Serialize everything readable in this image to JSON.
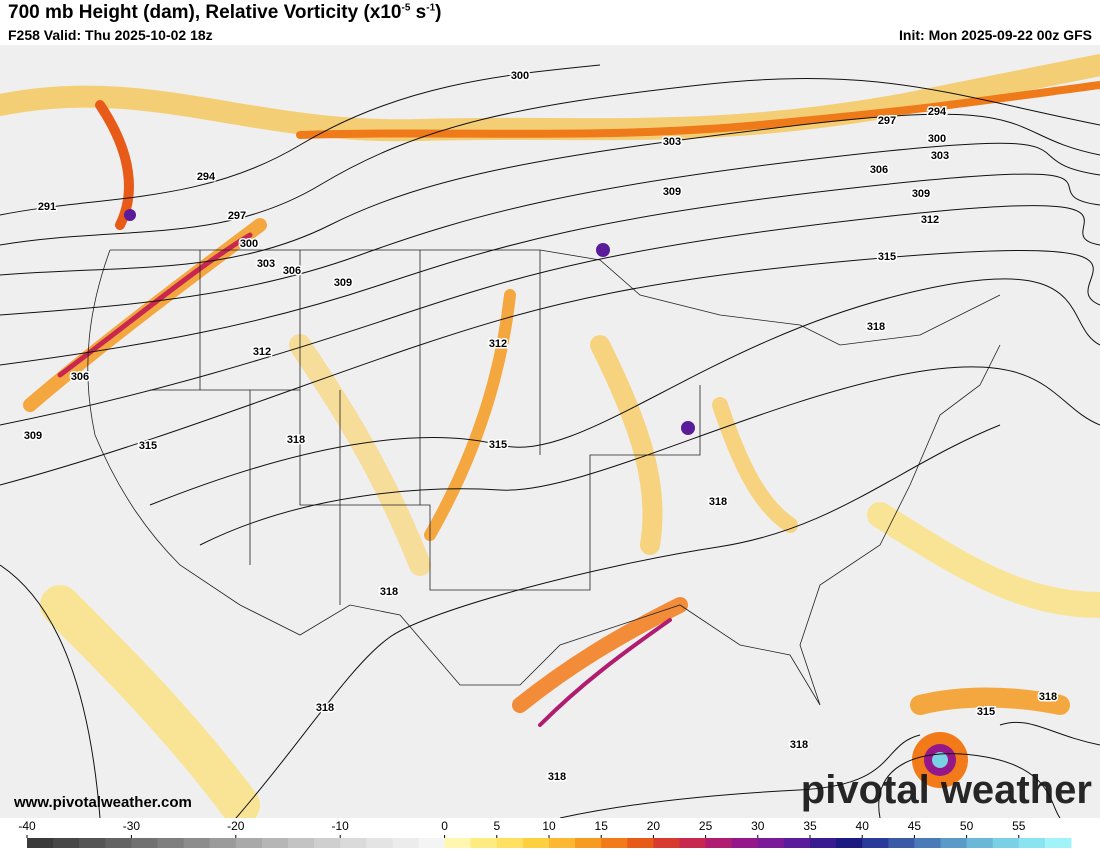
{
  "header": {
    "title": {
      "main": "700 mb Height (dam), Relative Vorticity (x10",
      "exp1": "-5",
      "mid": " s",
      "exp2": "-1",
      "end": ")"
    },
    "valid": "F258 Valid: Thu 2025-10-02 18z",
    "init": "Init: Mon 2025-09-22 00z GFS"
  },
  "map": {
    "contour_labels": [
      300,
      294,
      297,
      300,
      303,
      303,
      306,
      309,
      309,
      312,
      315,
      294,
      291,
      297,
      300,
      303,
      306,
      309,
      312,
      312,
      318,
      306,
      309,
      315,
      318,
      315,
      318,
      318,
      318,
      318,
      315,
      318,
      318
    ],
    "website": "www.pivotalweather.com",
    "watermark": "pivotal weather"
  },
  "colorbar": {
    "range": [
      -40,
      60
    ],
    "ticks": [
      -40,
      -30,
      -20,
      -10,
      0,
      5,
      10,
      15,
      20,
      25,
      30,
      35,
      40,
      45,
      50,
      55
    ],
    "colors": [
      "#3a3a3a",
      "#474747",
      "#555555",
      "#636363",
      "#717171",
      "#7f7f7f",
      "#8d8d8d",
      "#9b9b9b",
      "#a9a9a9",
      "#b6b6b6",
      "#c3c3c3",
      "#cfcfcf",
      "#dadada",
      "#e4e4e4",
      "#ececec",
      "#f4f4f4",
      "#fff7b0",
      "#ffec80",
      "#ffe060",
      "#fdd040",
      "#fbb830",
      "#f79a20",
      "#f27a18",
      "#e85a18",
      "#d83a30",
      "#c82850",
      "#b01c70",
      "#94188a",
      "#7a1a98",
      "#5a1c9a",
      "#3a1a90",
      "#1c1a80",
      "#2a3a98",
      "#3a5aa8",
      "#4a7ab8",
      "#5a9ac8",
      "#6ab8d8",
      "#7ad0e4",
      "#8ae4f0",
      "#a0f4f8"
    ]
  }
}
